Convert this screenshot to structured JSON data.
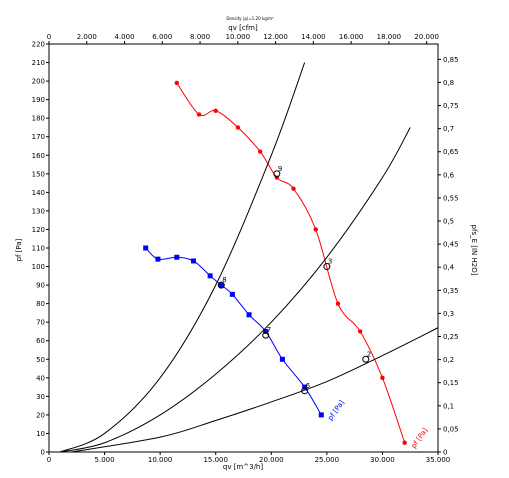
{
  "chart_data": {
    "type": "line",
    "title": "Density (ρ)=1,20 kg/m³",
    "xlabel": "qv [m^3/h]",
    "x2label": "qv [cfm]",
    "ylabel": "pf [Pa]",
    "y2label": "pfs_E [IN H2O]",
    "xlim": [
      0,
      35000
    ],
    "ylim": [
      0,
      220
    ],
    "x2lim": [
      0,
      20600
    ],
    "y2lim": [
      0,
      0.8832
    ],
    "x_ticks": [
      "0",
      "5.000",
      "10.000",
      "15.000",
      "20.000",
      "25.000",
      "30.000",
      "35.000"
    ],
    "x_tick_values": [
      0,
      5000,
      10000,
      15000,
      20000,
      25000,
      30000,
      35000
    ],
    "y_ticks": [
      "0",
      "10",
      "20",
      "30",
      "40",
      "50",
      "60",
      "70",
      "80",
      "90",
      "100",
      "110",
      "120",
      "130",
      "140",
      "150",
      "160",
      "170",
      "180",
      "190",
      "200",
      "210",
      "220"
    ],
    "y_tick_values": [
      0,
      10,
      20,
      30,
      40,
      50,
      60,
      70,
      80,
      90,
      100,
      110,
      120,
      130,
      140,
      150,
      160,
      170,
      180,
      190,
      200,
      210,
      220
    ],
    "x2_ticks": [
      "0",
      "2.000",
      "4.000",
      "6.000",
      "8.000",
      "10.000",
      "12.000",
      "14.000",
      "16.000",
      "18.000",
      "20.000"
    ],
    "x2_tick_values": [
      0,
      2000,
      4000,
      6000,
      8000,
      10000,
      12000,
      14000,
      16000,
      18000,
      20000
    ],
    "y2_ticks": [
      "0",
      "0,05",
      "0,1",
      "0,15",
      "0,2",
      "0,25",
      "0,3",
      "0,35",
      "0,4",
      "0,45",
      "0,5",
      "0,55",
      "0,6",
      "0,65",
      "0,7",
      "0,75",
      "0,8",
      "0,85"
    ],
    "y2_tick_values": [
      0,
      0.05,
      0.1,
      0.15,
      0.2,
      0.25,
      0.3,
      0.35,
      0.4,
      0.45,
      0.5,
      0.55,
      0.6,
      0.65,
      0.7,
      0.75,
      0.8,
      0.85
    ],
    "grid": false,
    "series": [
      {
        "name": "pf [Pa]",
        "color": "#ff0000",
        "marker": "star",
        "x": [
          11500,
          13500,
          15000,
          17000,
          19000,
          20500,
          22000,
          24000,
          26000,
          28000,
          30000,
          32000
        ],
        "y": [
          199,
          182,
          184,
          175,
          162,
          148,
          142,
          120,
          80,
          65,
          40,
          5
        ]
      },
      {
        "name": "pf [Pa]",
        "color": "#0000ff",
        "marker": "square",
        "x": [
          8700,
          9800,
          11500,
          13000,
          14500,
          15500,
          16500,
          18000,
          19500,
          21000,
          23000,
          24500
        ],
        "y": [
          110,
          104,
          105,
          103,
          95,
          90,
          85,
          74,
          65,
          50,
          35,
          20
        ]
      },
      {
        "name": "",
        "color": "#000000",
        "marker": "none",
        "x": [
          1000,
          5000,
          10000,
          15000,
          20000,
          23000
        ],
        "y": [
          0,
          10,
          40,
          90,
          160,
          210
        ]
      },
      {
        "name": "",
        "color": "#000000",
        "marker": "none",
        "x": [
          1000,
          5000,
          10000,
          15000,
          20000,
          25000,
          30000,
          32500
        ],
        "y": [
          0,
          5,
          20,
          42,
          70,
          105,
          148,
          175
        ]
      },
      {
        "name": "",
        "color": "#000000",
        "marker": "none",
        "x": [
          2000,
          10000,
          15000,
          20000,
          25000,
          30000,
          35000
        ],
        "y": [
          0,
          8,
          17,
          27,
          38,
          52,
          67
        ]
      }
    ],
    "points": [
      {
        "label": "9",
        "x": 20500,
        "y": 150
      },
      {
        "label": "8",
        "x": 15500,
        "y": 90
      },
      {
        "label": "7",
        "x": 19500,
        "y": 63
      },
      {
        "label": "6",
        "x": 23000,
        "y": 33
      },
      {
        "label": "3",
        "x": 25000,
        "y": 100
      },
      {
        "label": "2",
        "x": 28500,
        "y": 50
      }
    ]
  }
}
